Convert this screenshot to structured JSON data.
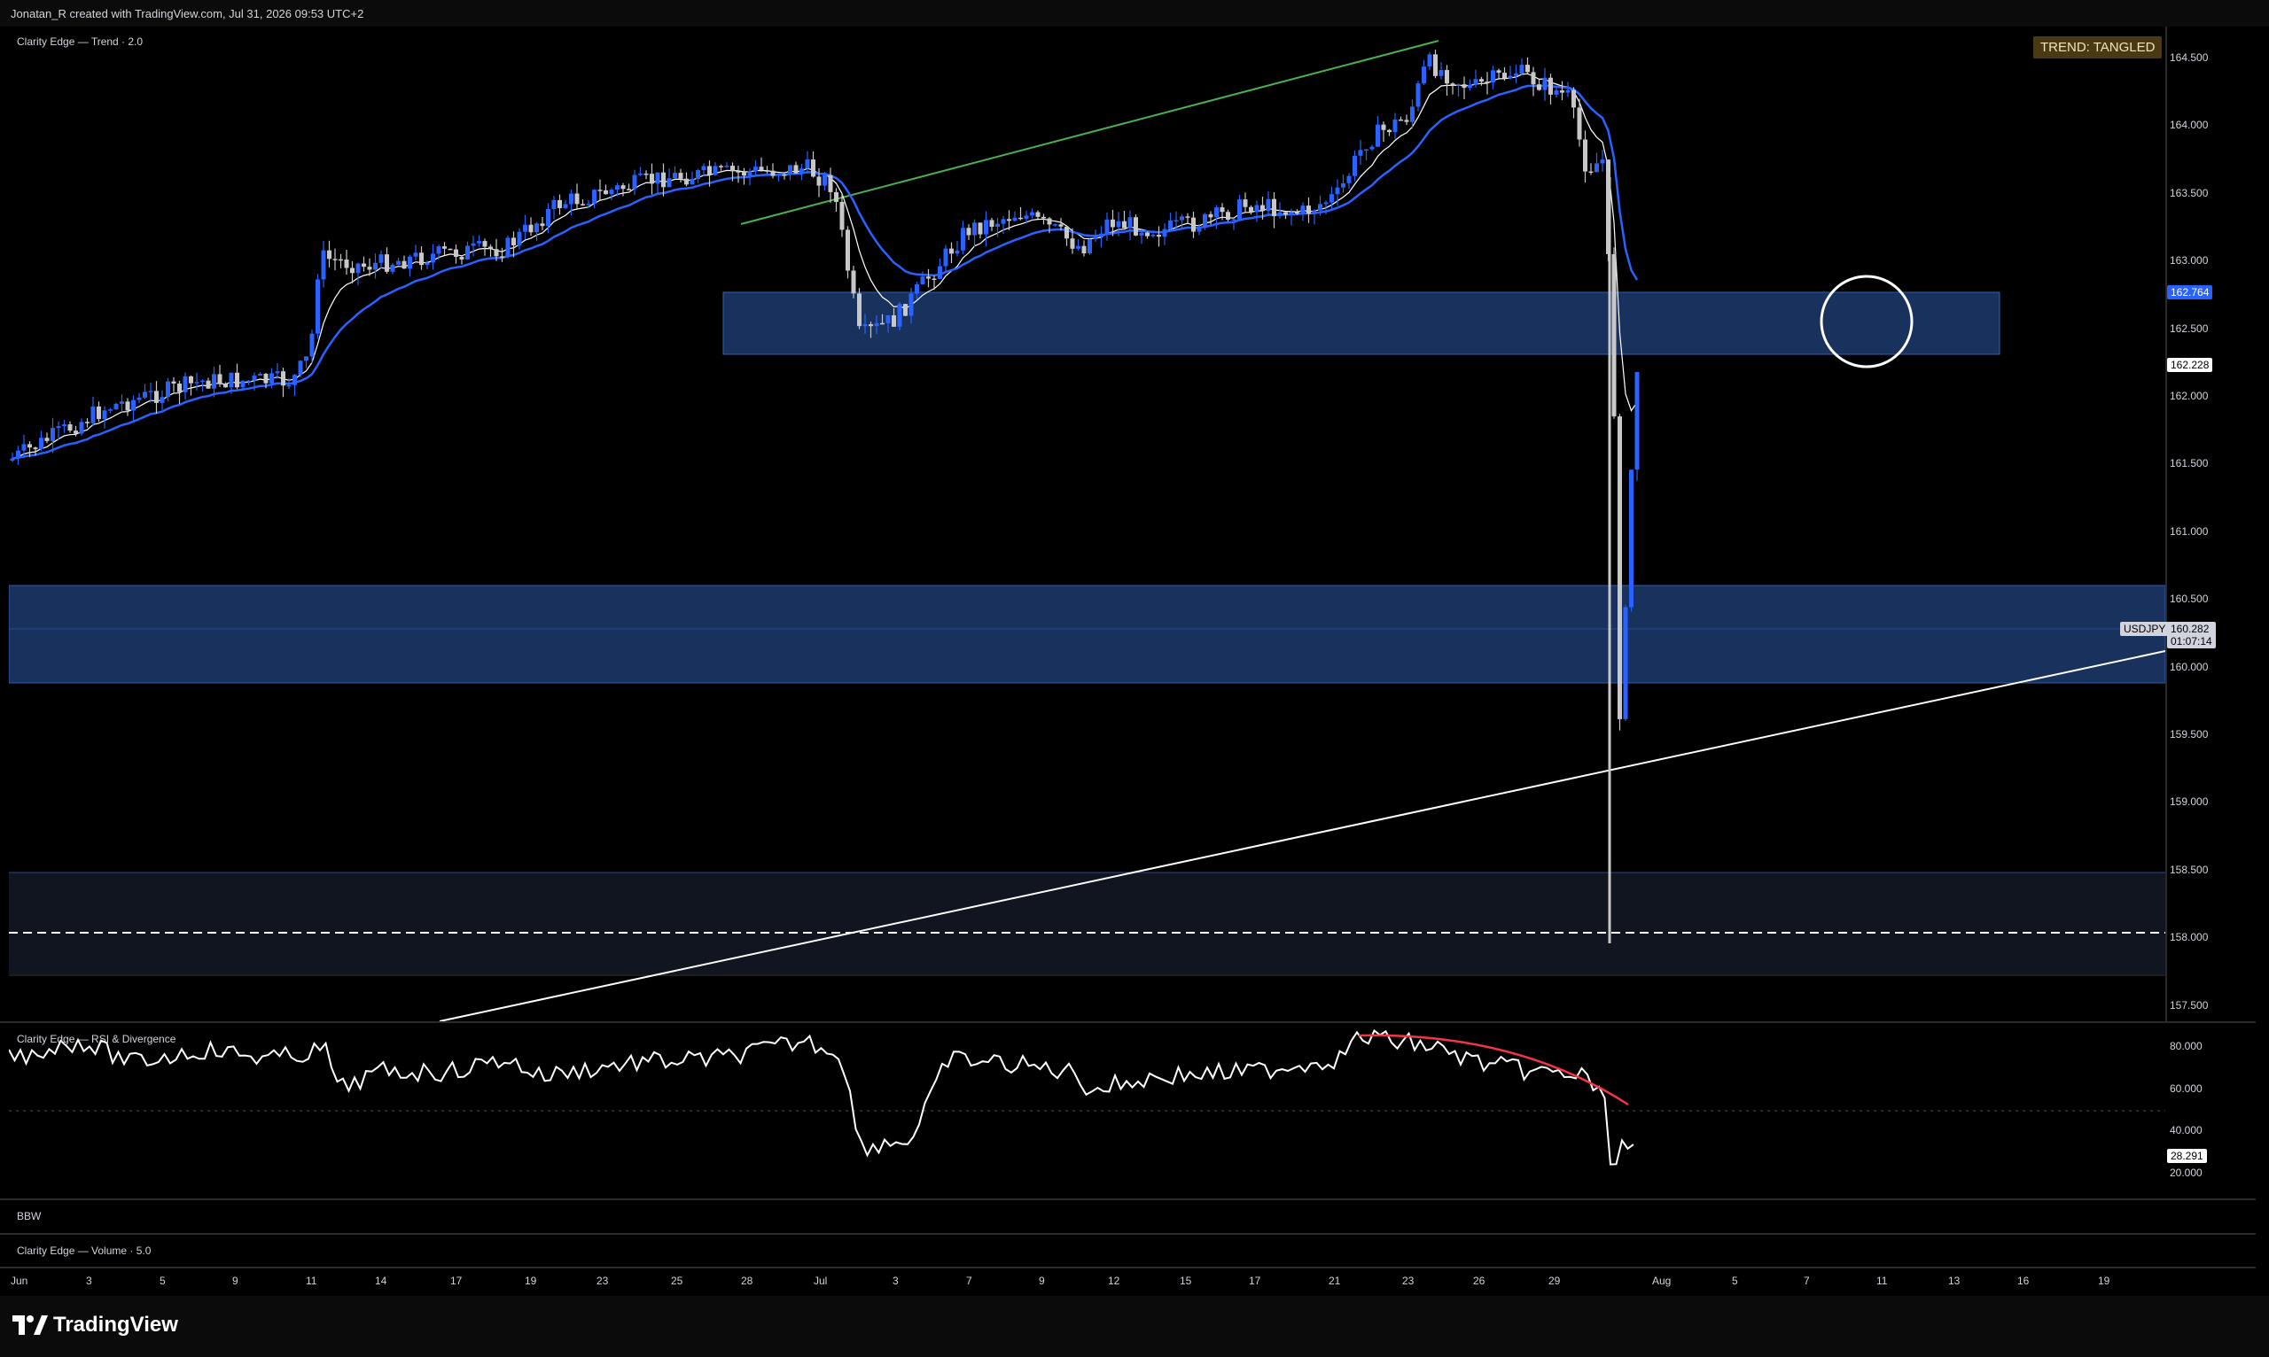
{
  "header": {
    "attribution": "Jonatan_R created with TradingView.com, Jul 31, 2026 09:53 UTC+2"
  },
  "main_pane": {
    "indicator_label": "Clarity Edge — Trend · 2.0",
    "trend_badge": "TREND: TANGLED",
    "symbol": "USDJPY",
    "current_price": "160.282",
    "countdown": "01:07:14",
    "ma_price_blue": "162.764",
    "ma_price_white": "162.228",
    "price_ticks": [
      "164.500",
      "164.000",
      "163.500",
      "163.000",
      "162.500",
      "162.000",
      "161.500",
      "161.000",
      "160.500",
      "160.000",
      "159.500",
      "159.000",
      "158.500",
      "158.000",
      "157.500"
    ]
  },
  "rsi_pane": {
    "label": "Clarity Edge — RSI & Divergence",
    "ticks": [
      "80.000",
      "60.000",
      "40.000",
      "20.000"
    ],
    "current_value": "28.291"
  },
  "bbw_pane": {
    "label": "BBW"
  },
  "volume_pane": {
    "label": "Clarity Edge — Volume · 5.0"
  },
  "time_axis": [
    "Jun",
    "3",
    "5",
    "9",
    "11",
    "14",
    "17",
    "19",
    "23",
    "25",
    "28",
    "Jul",
    "3",
    "7",
    "9",
    "12",
    "15",
    "17",
    "21",
    "23",
    "26",
    "29",
    "Aug",
    "5",
    "7",
    "11",
    "13",
    "16",
    "19"
  ],
  "footer": {
    "brand": "TradingView"
  },
  "colors": {
    "bull_candle": "#2962ff",
    "bear_candle": "#c8c8c8",
    "zone_fill": "#1e3a6e",
    "zone_border": "#3d6fd1",
    "trendline_green": "#4caf50",
    "divergence_red": "#f23645",
    "badge_bg": "#4a3a13"
  }
}
